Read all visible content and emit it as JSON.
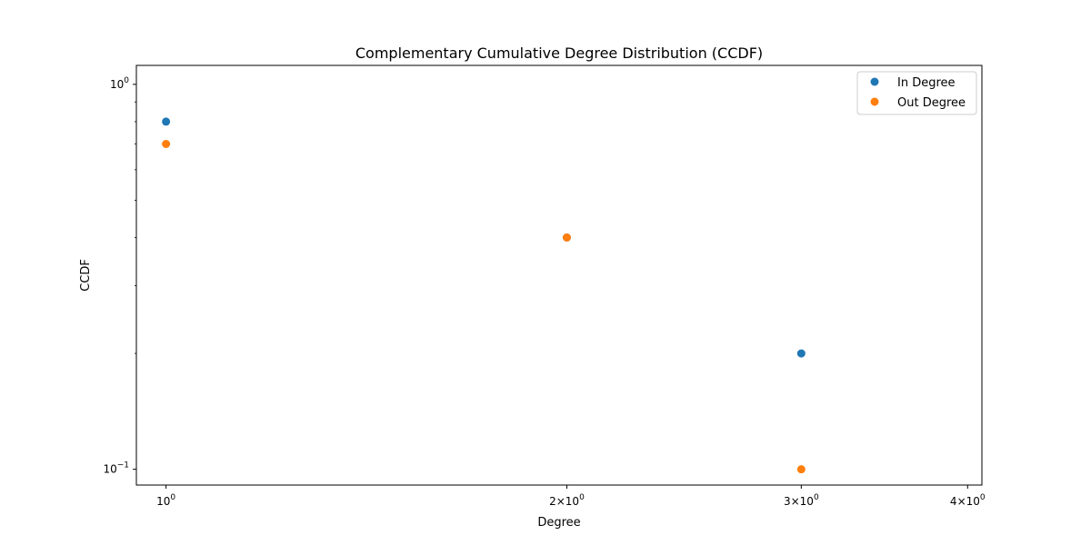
{
  "chart_data": {
    "type": "scatter",
    "title": "Complementary Cumulative Degree Distribution (CCDF)",
    "xlabel": "Degree",
    "ylabel": "CCDF",
    "xscale": "log",
    "yscale": "log",
    "xlim": [
      0.95,
      4.1
    ],
    "ylim": [
      0.091,
      1.12
    ],
    "grid": false,
    "legend_position": "top-right",
    "x_ticks": [
      {
        "value": 1,
        "base": "10",
        "exp": "0"
      },
      {
        "value": 2,
        "mant": "2",
        "base": "10",
        "exp": "0"
      },
      {
        "value": 3,
        "mant": "3",
        "base": "10",
        "exp": "0"
      },
      {
        "value": 4,
        "mant": "4",
        "base": "10",
        "exp": "0"
      }
    ],
    "y_ticks": [
      {
        "value": 1,
        "base": "10",
        "exp": "0"
      },
      {
        "value": 0.1,
        "base": "10",
        "exp": "−1"
      }
    ],
    "series": [
      {
        "name": "In Degree",
        "color": "#1f77b4",
        "x": [
          1,
          2,
          3
        ],
        "y": [
          0.8,
          0.4,
          0.2
        ]
      },
      {
        "name": "Out Degree",
        "color": "#ff7f0e",
        "x": [
          1,
          2,
          3
        ],
        "y": [
          0.7,
          0.4,
          0.1
        ]
      }
    ]
  }
}
